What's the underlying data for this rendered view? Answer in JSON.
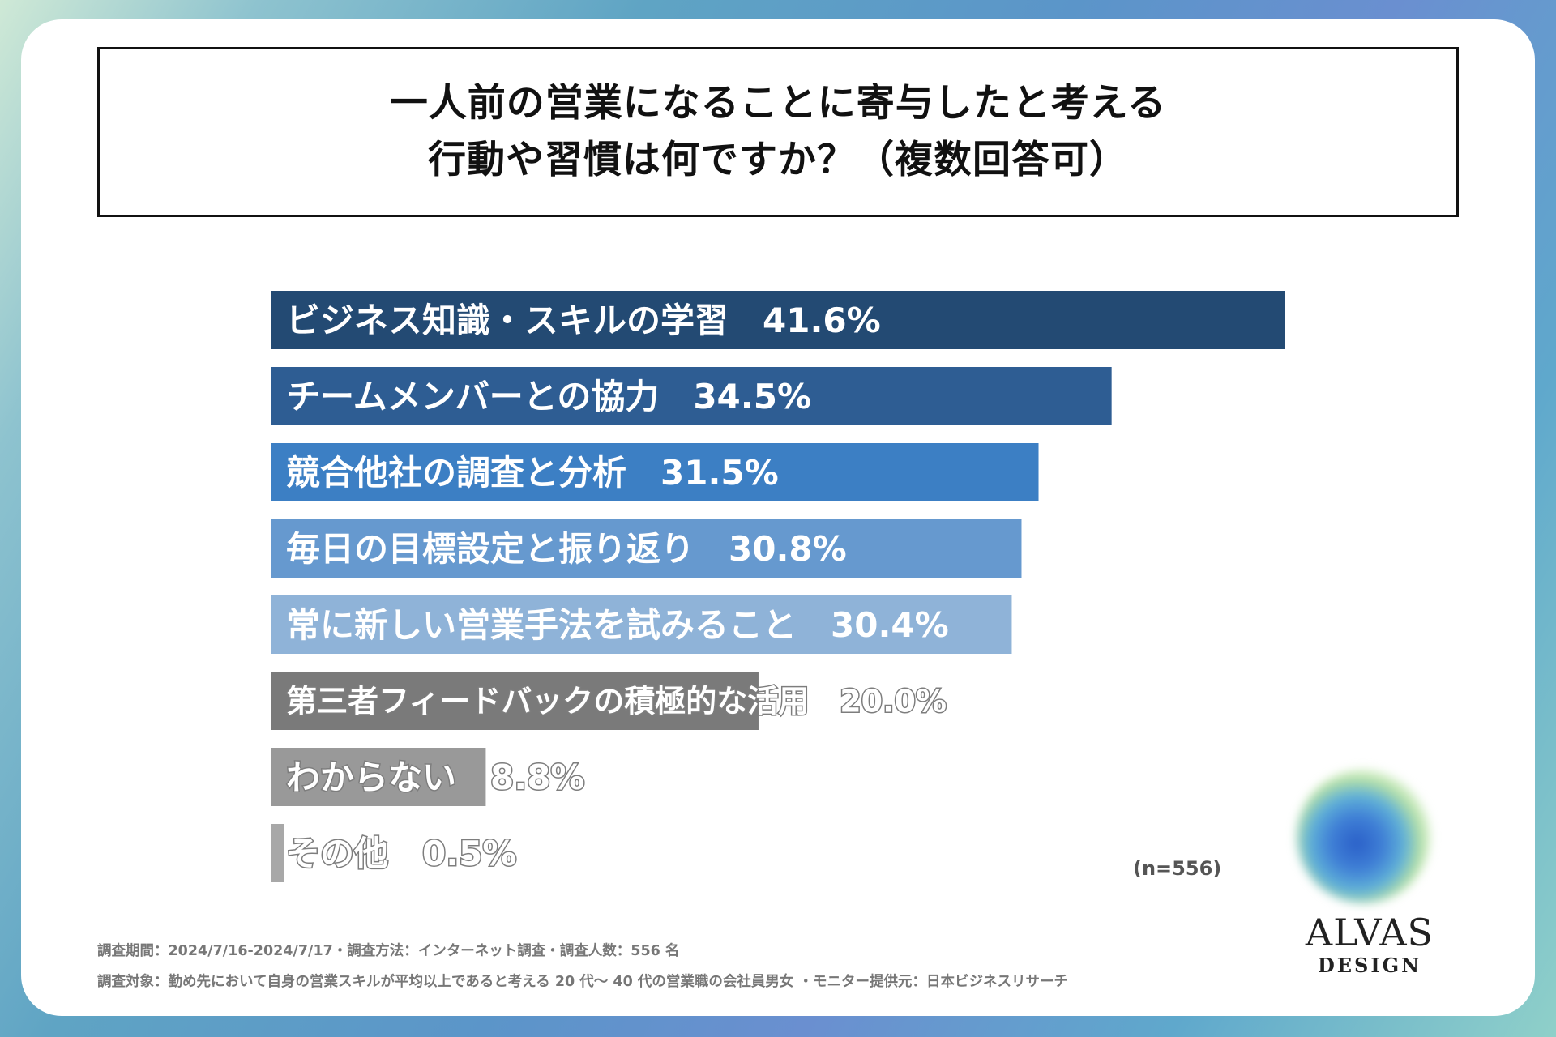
{
  "title": {
    "line1": "一人前の営業になることに寄与したと考える",
    "line2": "行動や習慣は何ですか？（複数回答可）"
  },
  "chart_data": {
    "type": "bar",
    "orientation": "horizontal",
    "categories": [
      "ビジネス知識・スキルの学習",
      "チームメンバーとの協力",
      "競合他社の調査と分析",
      "毎日の目標設定と振り返り",
      "常に新しい営業手法を試みること",
      "第三者フィードバックの積極的な活用",
      "わからない",
      "その他"
    ],
    "values": [
      41.6,
      34.5,
      31.5,
      30.8,
      30.4,
      20.0,
      8.8,
      0.5
    ],
    "value_labels": [
      "41.6%",
      "34.5%",
      "31.5%",
      "30.8%",
      "30.4%",
      "20.0%",
      "8.8%",
      "0.5%"
    ],
    "colors": [
      "#234a73",
      "#2e5d93",
      "#3c7fc4",
      "#6699cf",
      "#8fb3d8",
      "#7a7a7a",
      "#999999",
      "#a8a8a8"
    ],
    "title": "",
    "xlabel": "",
    "ylabel": ""
  },
  "sample_size": "(n=556)",
  "footnotes": {
    "line1": "調査期間：2024/7/16-2024/7/17・調査方法：インターネット調査・調査人数：556 名",
    "line2": "調査対象：勤め先において自身の営業スキルが平均以上であると考える 20 代～ 40 代の営業職の会社員男女 ・モニター提供元：日本ビジネスリサーチ"
  },
  "logo": {
    "name": "ALVAS",
    "sub": "DESIGN"
  }
}
